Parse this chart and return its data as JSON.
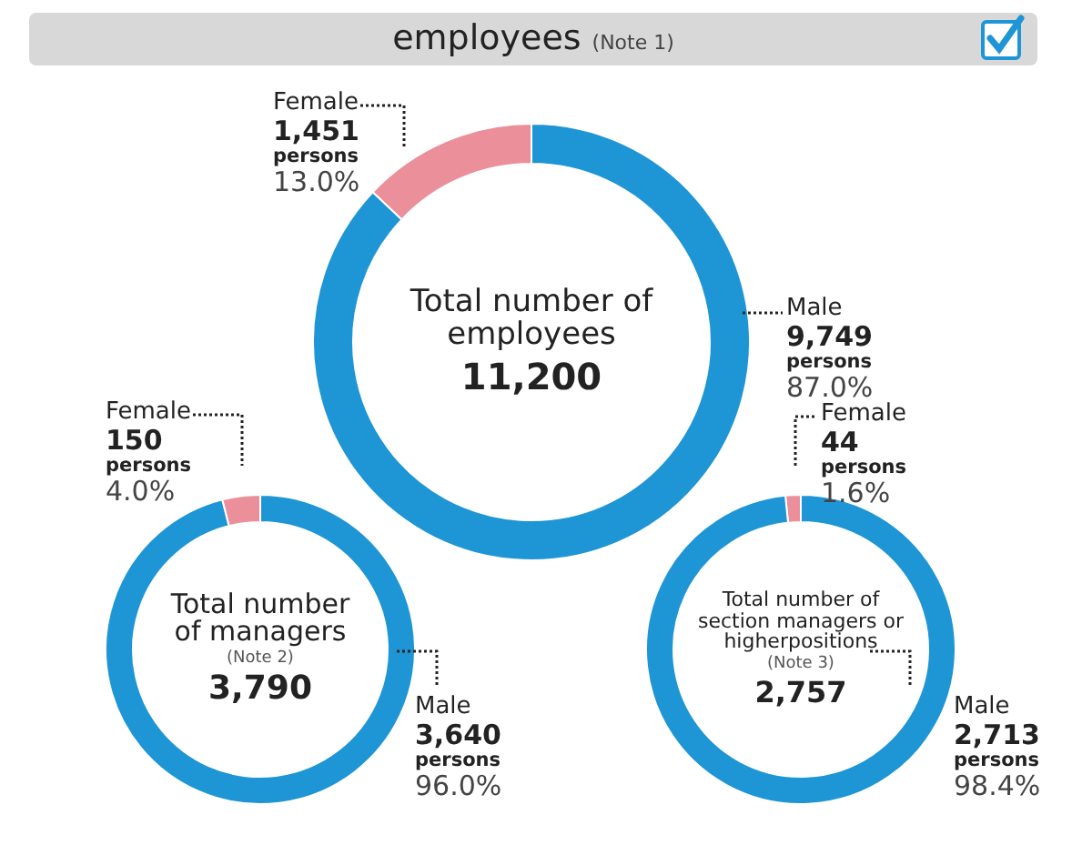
{
  "chart_data": [
    {
      "type": "donut",
      "title": "employees",
      "categories": [
        "Female",
        "Male"
      ],
      "values": [
        1451,
        9749
      ],
      "colors": [
        "#eb8f9b",
        "#1e95d4"
      ],
      "value_labels": [
        "1,451",
        "9,749"
      ],
      "annotations": [
        "Total number of employees",
        "11,200",
        "persons",
        "13.0%",
        "87.0%",
        "(Note 1)"
      ]
    },
    {
      "type": "donut",
      "categories": [
        "Female",
        "Male"
      ],
      "values": [
        150,
        3640
      ],
      "colors": [
        "#eb8f9b",
        "#1e95d4"
      ],
      "value_labels": [
        "150",
        "3,640"
      ],
      "annotations": [
        "Total number of managers",
        "3,790",
        "persons",
        "4.0%",
        "96.0%",
        "(Note 2)"
      ]
    },
    {
      "type": "donut",
      "categories": [
        "Female",
        "Male"
      ],
      "values": [
        44,
        2713
      ],
      "colors": [
        "#eb8f9b",
        "#1e95d4"
      ],
      "value_labels": [
        "44",
        "2,713"
      ],
      "annotations": [
        "Total number of section managers or higherpositions",
        "2,757",
        "persons",
        "1.6%",
        "98.4%",
        "(Note 3)"
      ]
    }
  ]
}
